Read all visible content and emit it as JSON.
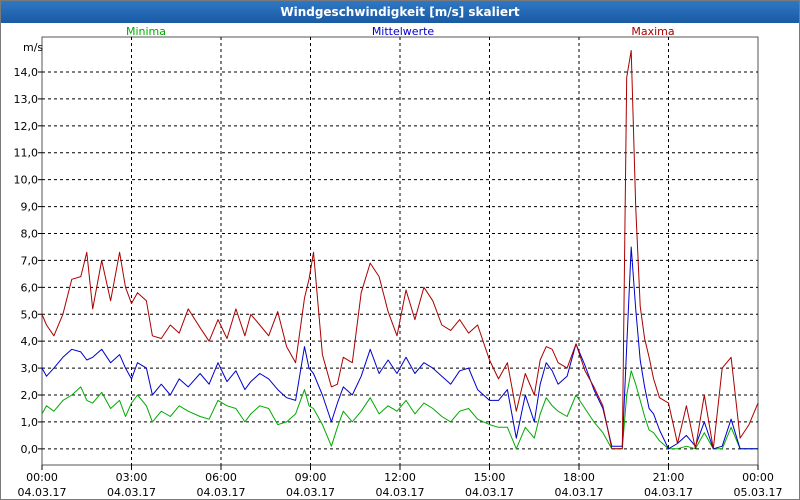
{
  "window": {
    "title": "Windgeschwindigkeit [m/s] skaliert"
  },
  "chart_data": {
    "type": "line",
    "title": "Windgeschwindigkeit [m/s] skaliert",
    "ylabel": "m/s",
    "ylim": [
      -0.6,
      15.3
    ],
    "xlim": [
      0,
      24
    ],
    "grid": true,
    "y_ticks": [
      "0,0",
      "1,0",
      "2,0",
      "3,0",
      "4,0",
      "5,0",
      "6,0",
      "7,0",
      "8,0",
      "9,0",
      "10,0",
      "11,0",
      "12,0",
      "13,0",
      "14,0"
    ],
    "x_ticks": [
      {
        "time": "00:00",
        "date": "04.03.17"
      },
      {
        "time": "03:00",
        "date": "04.03.17"
      },
      {
        "time": "06:00",
        "date": "04.03.17"
      },
      {
        "time": "09:00",
        "date": "04.03.17"
      },
      {
        "time": "12:00",
        "date": "04.03.17"
      },
      {
        "time": "15:00",
        "date": "04.03.17"
      },
      {
        "time": "18:00",
        "date": "04.03.17"
      },
      {
        "time": "21:00",
        "date": "04.03.17"
      },
      {
        "time": "00:00",
        "date": "05.03.17"
      }
    ],
    "series": [
      {
        "name": "Minima",
        "color": "#00aa00",
        "x": [
          0,
          0.15,
          0.4,
          0.7,
          1,
          1.3,
          1.5,
          1.7,
          2,
          2.3,
          2.6,
          2.8,
          3,
          3.2,
          3.5,
          3.7,
          4,
          4.3,
          4.6,
          4.9,
          5.3,
          5.6,
          5.9,
          6.2,
          6.5,
          6.8,
          7,
          7.3,
          7.6,
          7.9,
          8.2,
          8.5,
          8.8,
          8.95,
          9.1,
          9.4,
          9.7,
          9.9,
          10.1,
          10.4,
          10.7,
          11,
          11.3,
          11.6,
          11.9,
          12.2,
          12.5,
          12.8,
          13.1,
          13.4,
          13.7,
          14,
          14.3,
          14.6,
          15,
          15.3,
          15.6,
          15.9,
          16.2,
          16.5,
          16.7,
          16.9,
          17.1,
          17.3,
          17.6,
          17.9,
          18.2,
          18.5,
          18.8,
          19.1,
          19.3,
          19.45,
          19.6,
          19.75,
          19.9,
          20.05,
          20.2,
          20.35,
          20.5,
          20.7,
          21,
          21.3,
          21.6,
          21.9,
          22.2,
          22.5,
          22.8,
          23.1,
          23.4,
          23.7,
          24
        ],
        "values": [
          1.3,
          1.6,
          1.4,
          1.8,
          2.0,
          2.3,
          1.8,
          1.7,
          2.1,
          1.5,
          1.8,
          1.2,
          1.7,
          2.0,
          1.6,
          1.0,
          1.4,
          1.2,
          1.6,
          1.4,
          1.2,
          1.1,
          1.8,
          1.6,
          1.5,
          1.0,
          1.3,
          1.6,
          1.5,
          0.9,
          1.0,
          1.3,
          2.2,
          1.6,
          1.5,
          0.9,
          0.1,
          0.8,
          1.4,
          1.0,
          1.4,
          1.9,
          1.3,
          1.6,
          1.4,
          1.8,
          1.3,
          1.7,
          1.5,
          1.2,
          1.0,
          1.4,
          1.5,
          1.1,
          0.9,
          0.8,
          0.8,
          0.0,
          0.8,
          0.4,
          1.3,
          1.9,
          1.6,
          1.4,
          1.2,
          2.0,
          1.5,
          1.0,
          0.6,
          0.0,
          0.0,
          0.0,
          2.0,
          2.9,
          2.4,
          1.8,
          1.2,
          0.7,
          0.6,
          0.3,
          0.0,
          0.0,
          0.1,
          0.0,
          0.6,
          0.0,
          0.0,
          0.8,
          0.0,
          0.0,
          0.0
        ]
      },
      {
        "name": "Mittelwerte",
        "color": "#0000cc",
        "x": [
          0,
          0.15,
          0.4,
          0.7,
          1,
          1.3,
          1.5,
          1.7,
          2,
          2.3,
          2.6,
          2.8,
          3,
          3.2,
          3.5,
          3.7,
          4,
          4.3,
          4.6,
          4.9,
          5.3,
          5.6,
          5.9,
          6.2,
          6.5,
          6.8,
          7,
          7.3,
          7.6,
          7.9,
          8.2,
          8.5,
          8.8,
          8.95,
          9.1,
          9.4,
          9.7,
          9.9,
          10.1,
          10.4,
          10.7,
          11,
          11.3,
          11.6,
          11.9,
          12.2,
          12.5,
          12.8,
          13.1,
          13.4,
          13.7,
          14,
          14.3,
          14.6,
          15,
          15.3,
          15.6,
          15.9,
          16.2,
          16.5,
          16.7,
          16.9,
          17.1,
          17.3,
          17.6,
          17.9,
          18.2,
          18.5,
          18.8,
          19.1,
          19.3,
          19.45,
          19.6,
          19.75,
          19.9,
          20.05,
          20.2,
          20.35,
          20.5,
          20.7,
          21,
          21.3,
          21.6,
          21.9,
          22.2,
          22.5,
          22.8,
          23.1,
          23.4,
          23.7,
          24
        ],
        "values": [
          3.0,
          2.7,
          3.0,
          3.4,
          3.7,
          3.6,
          3.3,
          3.4,
          3.7,
          3.2,
          3.5,
          3.0,
          2.6,
          3.2,
          3.0,
          2.0,
          2.4,
          2.0,
          2.6,
          2.3,
          2.8,
          2.4,
          3.2,
          2.5,
          2.9,
          2.2,
          2.5,
          2.8,
          2.6,
          2.2,
          1.9,
          1.8,
          3.8,
          3.0,
          2.8,
          2.0,
          1.0,
          1.7,
          2.3,
          2.0,
          2.7,
          3.7,
          2.8,
          3.3,
          2.8,
          3.4,
          2.8,
          3.2,
          3.0,
          2.7,
          2.4,
          2.9,
          3.0,
          2.2,
          1.8,
          1.8,
          2.2,
          0.4,
          2.0,
          1.0,
          2.4,
          3.2,
          2.9,
          2.4,
          2.7,
          3.9,
          3.1,
          2.2,
          1.5,
          0.1,
          0.1,
          0.1,
          3.8,
          7.5,
          5.2,
          3.3,
          2.3,
          1.5,
          1.3,
          0.7,
          0.0,
          0.2,
          0.5,
          0.1,
          1.0,
          0.0,
          0.1,
          1.1,
          0.0,
          0.0,
          0.0
        ]
      },
      {
        "name": "Maxima",
        "color": "#aa0000",
        "x": [
          0,
          0.15,
          0.4,
          0.7,
          1,
          1.3,
          1.5,
          1.7,
          2,
          2.3,
          2.6,
          2.8,
          3,
          3.2,
          3.5,
          3.7,
          4,
          4.3,
          4.6,
          4.9,
          5.3,
          5.6,
          5.9,
          6.2,
          6.5,
          6.8,
          7,
          7.3,
          7.6,
          7.9,
          8.2,
          8.5,
          8.8,
          8.95,
          9.1,
          9.4,
          9.7,
          9.9,
          10.1,
          10.4,
          10.7,
          11,
          11.3,
          11.6,
          11.9,
          12.2,
          12.5,
          12.8,
          13.1,
          13.4,
          13.7,
          14,
          14.3,
          14.6,
          15,
          15.3,
          15.6,
          15.9,
          16.2,
          16.5,
          16.7,
          16.9,
          17.1,
          17.3,
          17.6,
          17.9,
          18.2,
          18.5,
          18.8,
          19.1,
          19.3,
          19.45,
          19.6,
          19.75,
          19.9,
          20.05,
          20.2,
          20.35,
          20.5,
          20.7,
          21,
          21.3,
          21.6,
          21.9,
          22.2,
          22.5,
          22.8,
          23.1,
          23.4,
          23.7,
          24
        ],
        "values": [
          5.0,
          4.6,
          4.2,
          5.0,
          6.3,
          6.4,
          7.3,
          5.2,
          7.0,
          5.5,
          7.3,
          6.0,
          5.4,
          5.8,
          5.5,
          4.2,
          4.1,
          4.6,
          4.3,
          5.2,
          4.5,
          4.0,
          4.8,
          4.1,
          5.2,
          4.2,
          5.0,
          4.6,
          4.2,
          5.1,
          3.8,
          3.2,
          5.6,
          6.3,
          7.3,
          3.5,
          2.3,
          2.4,
          3.4,
          3.2,
          5.8,
          6.9,
          6.4,
          5.1,
          4.2,
          5.9,
          4.8,
          6.0,
          5.5,
          4.6,
          4.4,
          4.8,
          4.3,
          4.6,
          3.3,
          2.6,
          3.2,
          1.4,
          2.8,
          2.0,
          3.3,
          3.8,
          3.7,
          3.2,
          3.0,
          3.9,
          2.9,
          2.3,
          1.6,
          0.0,
          0.0,
          0.0,
          13.8,
          14.8,
          9.0,
          5.3,
          4.1,
          3.4,
          2.6,
          1.9,
          1.7,
          0.2,
          1.6,
          0.0,
          2.0,
          0.0,
          3.0,
          3.4,
          0.4,
          0.9,
          1.7
        ]
      }
    ]
  }
}
